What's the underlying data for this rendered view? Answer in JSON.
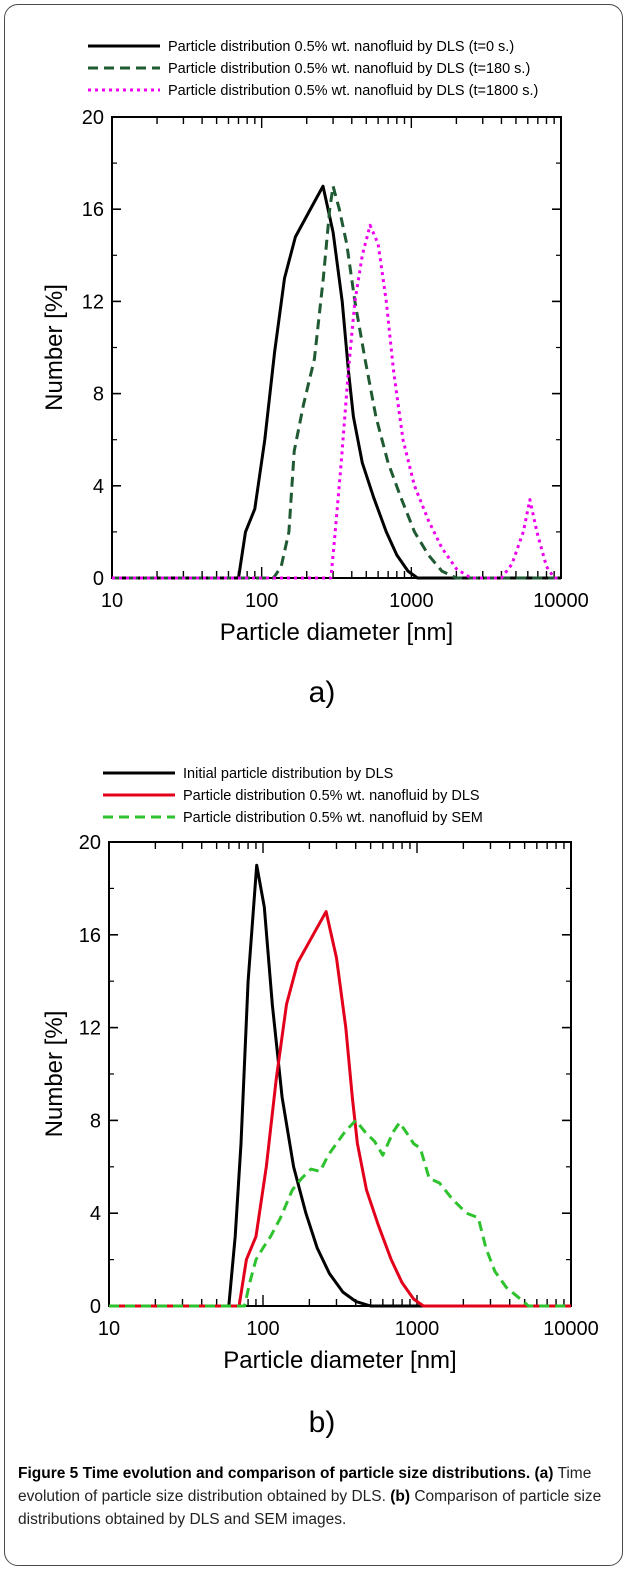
{
  "panels": [
    {
      "label": "a)",
      "chart_data": {
        "type": "line",
        "xscale": "log",
        "xlim": [
          10,
          10000
        ],
        "ylim": [
          0,
          20
        ],
        "xlabel": "Particle diameter [nm]",
        "ylabel": "Number [%]",
        "xticks": [
          10,
          100,
          1000,
          10000
        ],
        "xtick_labels": [
          "10",
          "100",
          "1000",
          "10000"
        ],
        "yticks": [
          0,
          4,
          8,
          12,
          16,
          20
        ],
        "ytick_labels": [
          "0",
          "4",
          "8",
          "12",
          "16",
          "20"
        ],
        "legend_position": "top",
        "series": [
          {
            "name": "Particle distribution 0.5% wt. nanofluid by DLS (t=0 s.)",
            "color": "#000000",
            "dash": "solid",
            "points": [
              [
                10,
                0
              ],
              [
                70,
                0
              ],
              [
                78,
                2
              ],
              [
                90,
                3
              ],
              [
                105,
                6
              ],
              [
                122,
                9.8
              ],
              [
                142,
                13
              ],
              [
                168,
                14.8
              ],
              [
                220,
                16.2
              ],
              [
                257,
                17
              ],
              [
                300,
                15
              ],
              [
                345,
                12
              ],
              [
                380,
                9
              ],
              [
                410,
                7
              ],
              [
                470,
                5
              ],
              [
                560,
                3.5
              ],
              [
                680,
                2
              ],
              [
                800,
                1
              ],
              [
                950,
                0.3
              ],
              [
                1100,
                0
              ],
              [
                10000,
                0
              ]
            ]
          },
          {
            "name": "Particle distribution 0.5% wt. nanofluid by DLS (t=180 s.)",
            "color": "#1f5a32",
            "dash": "dashed",
            "points": [
              [
                10,
                0
              ],
              [
                120,
                0
              ],
              [
                135,
                0.5
              ],
              [
                152,
                2
              ],
              [
                165,
                5.5
              ],
              [
                190,
                7.5
              ],
              [
                225,
                9.5
              ],
              [
                258,
                13
              ],
              [
                285,
                16
              ],
              [
                300,
                17
              ],
              [
                330,
                16
              ],
              [
                370,
                14.5
              ],
              [
                420,
                12
              ],
              [
                490,
                9.5
              ],
              [
                580,
                7
              ],
              [
                700,
                5
              ],
              [
                850,
                3.5
              ],
              [
                1050,
                2
              ],
              [
                1300,
                1
              ],
              [
                1600,
                0.3
              ],
              [
                2000,
                0
              ],
              [
                10000,
                0
              ]
            ]
          },
          {
            "name": "Particle distribution 0.5% wt. nanofluid by DLS (t=1800 s.)",
            "color": "#ee00ee",
            "dash": "dotted",
            "points": [
              [
                10,
                0
              ],
              [
                290,
                0
              ],
              [
                310,
                2
              ],
              [
                340,
                5
              ],
              [
                380,
                9
              ],
              [
                420,
                12
              ],
              [
                470,
                14
              ],
              [
                530,
                15.3
              ],
              [
                600,
                14.5
              ],
              [
                680,
                12
              ],
              [
                760,
                9
              ],
              [
                880,
                6
              ],
              [
                1050,
                4
              ],
              [
                1300,
                2.5
              ],
              [
                1600,
                1.3
              ],
              [
                2000,
                0.4
              ],
              [
                2500,
                0
              ],
              [
                4000,
                0
              ],
              [
                4700,
                0.6
              ],
              [
                5600,
                2
              ],
              [
                6200,
                3.4
              ],
              [
                6900,
                2
              ],
              [
                8000,
                0.5
              ],
              [
                9000,
                0
              ],
              [
                10000,
                0
              ]
            ]
          }
        ]
      }
    },
    {
      "label": "b)",
      "chart_data": {
        "type": "line",
        "xscale": "log",
        "xlim": [
          10,
          10000
        ],
        "ylim": [
          0,
          20
        ],
        "xlabel": "Particle diameter [nm]",
        "ylabel": "Number [%]",
        "xticks": [
          10,
          100,
          1000,
          10000
        ],
        "xtick_labels": [
          "10",
          "100",
          "1000",
          "10000"
        ],
        "yticks": [
          0,
          4,
          8,
          12,
          16,
          20
        ],
        "ytick_labels": [
          "0",
          "4",
          "8",
          "12",
          "16",
          "20"
        ],
        "legend_position": "top",
        "series": [
          {
            "name": "Initial particle distribution by DLS",
            "color": "#000000",
            "dash": "solid",
            "points": [
              [
                10,
                0
              ],
              [
                60,
                0
              ],
              [
                66,
                3
              ],
              [
                72,
                7
              ],
              [
                80,
                14
              ],
              [
                91,
                19
              ],
              [
                102,
                17.2
              ],
              [
                115,
                13
              ],
              [
                133,
                9
              ],
              [
                158,
                6
              ],
              [
                190,
                4
              ],
              [
                225,
                2.5
              ],
              [
                270,
                1.4
              ],
              [
                330,
                0.6
              ],
              [
                400,
                0.2
              ],
              [
                500,
                0
              ],
              [
                10000,
                0
              ]
            ]
          },
          {
            "name": "Particle distribution 0.5% wt. nanofluid by DLS",
            "color": "#e3001b",
            "dash": "solid",
            "points": [
              [
                10,
                0
              ],
              [
                70,
                0
              ],
              [
                78,
                2
              ],
              [
                90,
                3
              ],
              [
                105,
                6
              ],
              [
                122,
                9.8
              ],
              [
                142,
                13
              ],
              [
                168,
                14.8
              ],
              [
                220,
                16.2
              ],
              [
                257,
                17
              ],
              [
                300,
                15
              ],
              [
                345,
                12
              ],
              [
                380,
                9
              ],
              [
                410,
                7
              ],
              [
                470,
                5
              ],
              [
                560,
                3.5
              ],
              [
                680,
                2
              ],
              [
                800,
                1
              ],
              [
                950,
                0.3
              ],
              [
                1100,
                0
              ],
              [
                10000,
                0
              ]
            ]
          },
          {
            "name": "Particle distribution 0.5% wt. nanofluid by SEM",
            "color": "#2ec22e",
            "dash": "dashed",
            "points": [
              [
                10,
                0
              ],
              [
                76,
                0
              ],
              [
                82,
                1
              ],
              [
                90,
                2
              ],
              [
                100,
                2.5
              ],
              [
                112,
                3
              ],
              [
                130,
                3.8
              ],
              [
                155,
                5
              ],
              [
                178,
                5.5
              ],
              [
                205,
                5.9
              ],
              [
                235,
                5.8
              ],
              [
                265,
                6.5
              ],
              [
                300,
                7
              ],
              [
                340,
                7.5
              ],
              [
                400,
                8
              ],
              [
                460,
                7.5
              ],
              [
                530,
                7.1
              ],
              [
                600,
                6.5
              ],
              [
                700,
                7.5
              ],
              [
                770,
                7.9
              ],
              [
                850,
                7.5
              ],
              [
                950,
                7
              ],
              [
                1050,
                6.8
              ],
              [
                1200,
                5.5
              ],
              [
                1400,
                5.3
              ],
              [
                1700,
                4.6
              ],
              [
                2100,
                4
              ],
              [
                2500,
                3.8
              ],
              [
                2800,
                2.5
              ],
              [
                3200,
                1.5
              ],
              [
                3800,
                0.8
              ],
              [
                4500,
                0.4
              ],
              [
                5300,
                0
              ],
              [
                10000,
                0
              ]
            ]
          }
        ]
      }
    }
  ],
  "caption": {
    "lead": "Figure 5 Time evolution and comparison of particle size distributions.",
    "a_ref": "(a)",
    "a_text": " Time evolution of particle size distribution obtained by DLS. ",
    "b_ref": "(b)",
    "b_text": " Comparison of particle size distributions obtained by DLS and SEM images."
  }
}
